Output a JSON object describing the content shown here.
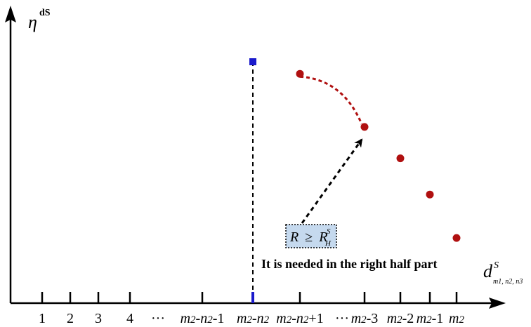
{
  "chart_data": {
    "type": "scatter",
    "title": "",
    "xlabel": "d",
    "xlabel_sup": "S",
    "xlabel_sub": "m1, n2, n3",
    "ylabel": "η",
    "ylabel_sup": "dS",
    "categories": [
      "1",
      "2",
      "3",
      "4",
      "···",
      "m2-n2-1",
      "m2-n2",
      "m2-n2+1",
      "···",
      "m2-3",
      "m2-2",
      "m2-1",
      "m2"
    ],
    "series": [
      {
        "marker": "square",
        "color": "#1a1acc",
        "points": [
          {
            "x": "m2-n2",
            "y": 1.0
          }
        ]
      },
      {
        "marker": "circle",
        "color": "#b01010",
        "points": [
          {
            "x": "m2-n2+1",
            "y": 0.95
          },
          {
            "x": "m2-3",
            "y": 0.73
          },
          {
            "x": "m2-2",
            "y": 0.6
          },
          {
            "x": "m2-1",
            "y": 0.45
          },
          {
            "x": "m2",
            "y": 0.27
          }
        ]
      }
    ],
    "dashed_vertical_line_at": "m2-n2",
    "dashed_curve": {
      "from": "m2-n2+1",
      "to": "m2-3",
      "color": "#b01010"
    },
    "annotations": {
      "box": {
        "lhs": "R",
        "rel": "≥",
        "rhs": "R",
        "rhs_sup": "S",
        "rhs_sub": "H",
        "fill": "#c5d9ee"
      },
      "text": "It is needed in the right half part",
      "arrow_target": "m2-3"
    },
    "ylim": [
      0,
      1.2
    ],
    "grid": false,
    "legend": "none"
  }
}
